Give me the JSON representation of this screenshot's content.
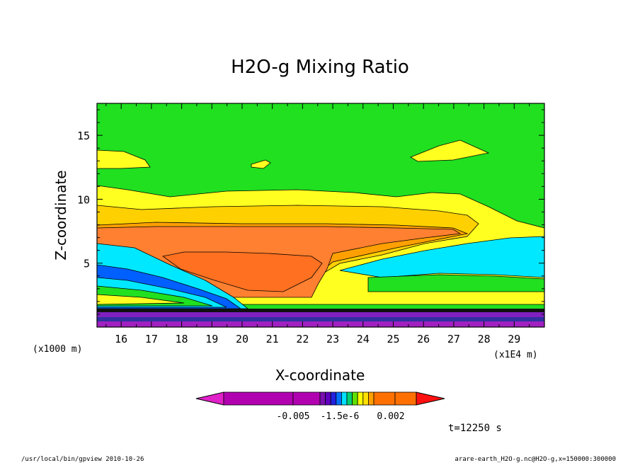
{
  "chart_data": {
    "type": "heatmap",
    "title": "H2O-g Mixing Ratio",
    "xlabel": "X-coordinate",
    "ylabel": "Z-coordinate",
    "x_unit_left": "(x1000 m)",
    "x_unit_right": "(x1E4 m)",
    "xlim": [
      15.2,
      30.0
    ],
    "ylim": [
      0,
      17.5
    ],
    "xticks": [
      "16",
      "17",
      "18",
      "19",
      "20",
      "21",
      "22",
      "23",
      "24",
      "25",
      "26",
      "27",
      "28",
      "29"
    ],
    "yticks": [
      "5",
      "10",
      "15"
    ],
    "colorbar": {
      "tick_labels": [
        "-0.005",
        "-1.5e-6",
        "0.002"
      ],
      "colors": [
        "#e020c8",
        "#b000b0",
        "#b000b0",
        "#7a10b0",
        "#6000c0",
        "#2020e0",
        "#0070ff",
        "#00e0ff",
        "#00d070",
        "#60e000",
        "#ffff00",
        "#ffe000",
        "#ffa000",
        "#ff7000",
        "#ff7000",
        "#ff1010"
      ]
    },
    "time_label": "t=12250 s",
    "regions": [
      {
        "level": "background",
        "color": "#20e020"
      },
      {
        "level": "yellow",
        "color": "#ffff20"
      },
      {
        "level": "gold",
        "color": "#ffd000"
      },
      {
        "level": "orange-light",
        "color": "#ffa000"
      },
      {
        "level": "orange",
        "color": "#ff8030"
      },
      {
        "level": "cyan",
        "color": "#00e8ff"
      },
      {
        "level": "blue",
        "color": "#0070ff"
      },
      {
        "level": "purple",
        "color": "#8020c0"
      },
      {
        "level": "dark-blue",
        "color": "#2020a0"
      }
    ]
  },
  "footer": {
    "left": "/usr/local/bin/gpview  2010-10-26",
    "right": "arare-earth_H2O-g.nc@H2O-g,x=150000:300000"
  }
}
